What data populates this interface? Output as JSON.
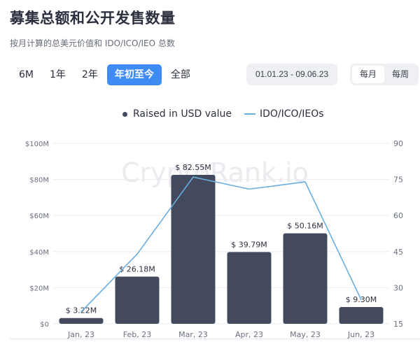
{
  "header": {
    "title": "募集总额和公开发售数量",
    "subtitle": "按月计算的总美元价值和 IDO/ICO/IEO 总数"
  },
  "range_buttons": [
    {
      "label": "6M",
      "active": false
    },
    {
      "label": "1年",
      "active": false
    },
    {
      "label": "2年",
      "active": false
    },
    {
      "label": "年初至今",
      "active": true
    },
    {
      "label": "全部",
      "active": false
    }
  ],
  "date_range": "01.01.23 - 09.06.23",
  "period_toggle": [
    {
      "label": "每月",
      "active": true
    },
    {
      "label": "每周",
      "active": false
    }
  ],
  "legend": {
    "bar_label": "Raised in USD value",
    "line_label": "IDO/ICO/IEOs"
  },
  "watermark": "CryptoRank.io",
  "colors": {
    "accent": "#3e8bf5",
    "bar": "#444a5e",
    "line": "#6aaee0",
    "grid": "#eceef2"
  },
  "chart_data": {
    "type": "bar",
    "title": "募集总额和公开发售数量",
    "categories": [
      "Jan, 23",
      "Feb, 23",
      "Mar, 23",
      "Apr, 23",
      "May, 23",
      "Jun, 23"
    ],
    "series": [
      {
        "name": "Raised in USD value",
        "type": "bar",
        "axis": "left",
        "values": [
          3.22,
          26.18,
          82.55,
          39.79,
          50.16,
          9.3
        ],
        "labels": [
          "$ 3.22M",
          "$ 26.18M",
          "$ 82.55M",
          "$ 39.79M",
          "$ 50.16M",
          "$ 9.30M"
        ]
      },
      {
        "name": "IDO/ICO/IEOs",
        "type": "line",
        "axis": "right",
        "values": [
          20,
          44,
          76,
          71,
          74,
          25
        ]
      }
    ],
    "left_axis": {
      "ticks": [
        "$0",
        "$20M",
        "$40M",
        "$60M",
        "$80M",
        "$100M"
      ],
      "range": [
        0,
        100
      ]
    },
    "right_axis": {
      "ticks": [
        "15",
        "30",
        "45",
        "60",
        "75",
        "90"
      ],
      "range": [
        15,
        90
      ]
    },
    "grid": true,
    "legend_position": "top"
  }
}
